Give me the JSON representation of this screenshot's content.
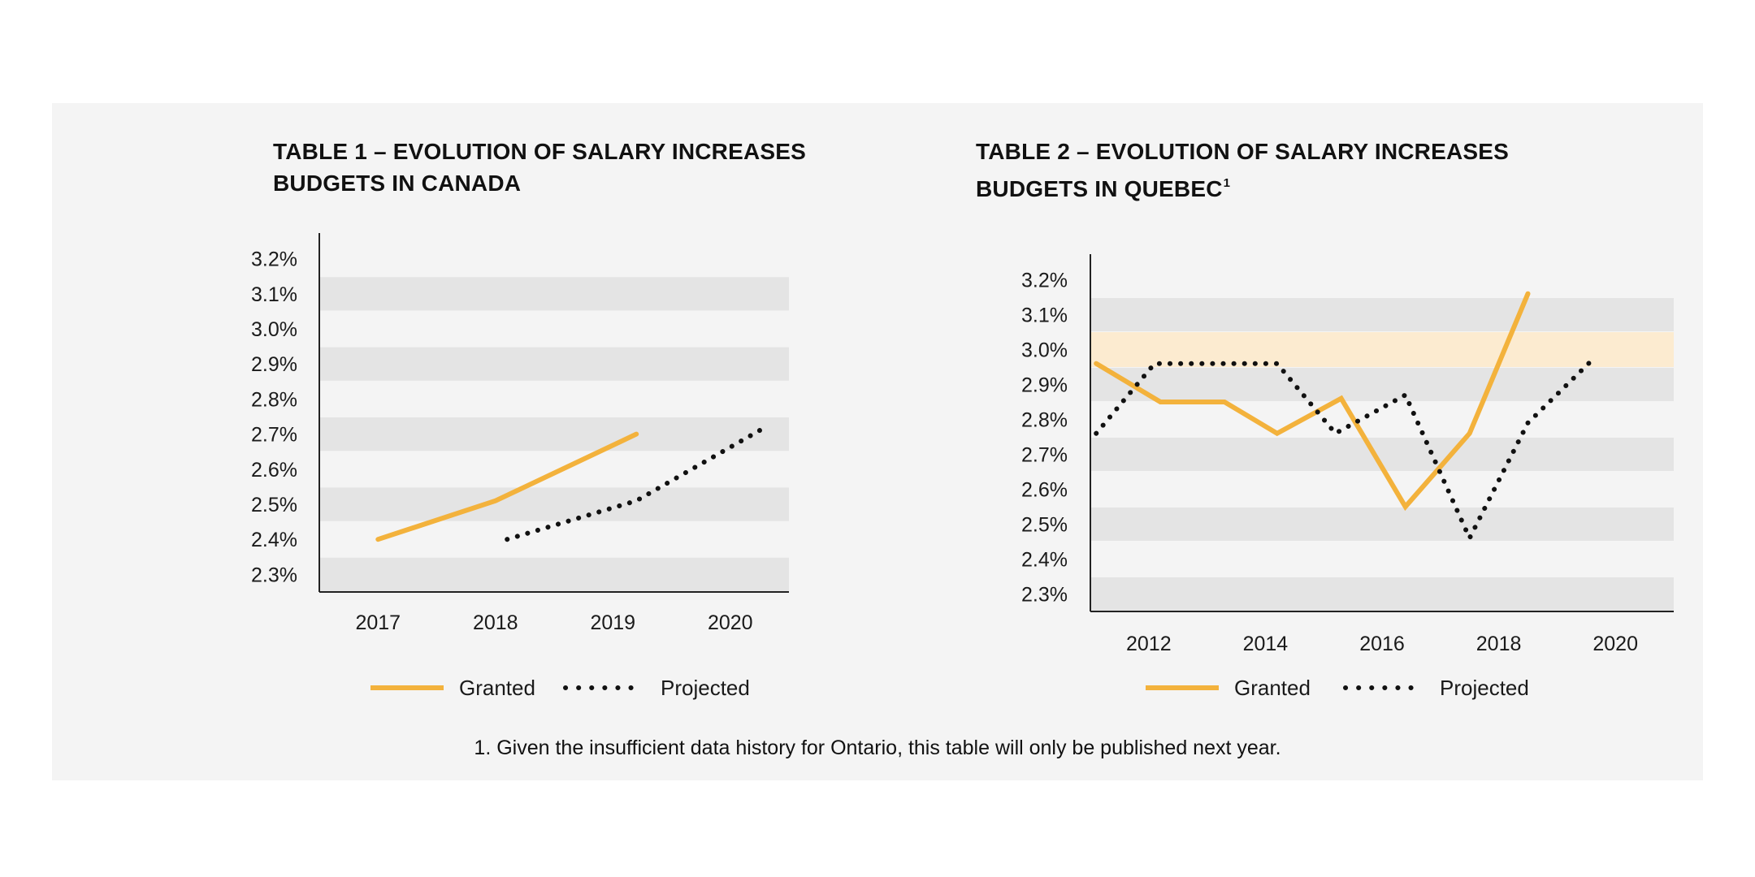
{
  "footnote": "1. Given the insufficient data history for Ontario, this table will only be published next year.",
  "colors": {
    "panel_bg": "#f4f4f4",
    "band": "#e4e4e4",
    "highlight_band": "#fcebd0",
    "granted": "#f3b23c",
    "projected": "#111111",
    "axis": "#222222"
  },
  "chart_data": [
    {
      "type": "line",
      "title_lead": "TABLE 1 –",
      "title": "EVOLUTION OF SALARY INCREASES BUDGETS IN CANADA",
      "title_line1": "EVOLUTION OF SALARY INCREASES",
      "title_line2": "BUDGETS IN CANADA",
      "title_sup": "",
      "xlabel": "",
      "ylabel": "",
      "x_ticks": [
        "2017",
        "2018",
        "2019",
        "2020"
      ],
      "y_ticks": [
        "3.2%",
        "3.1%",
        "3.0%",
        "2.9%",
        "2.8%",
        "2.7%",
        "2.6%",
        "2.5%",
        "2.4%",
        "2.3%"
      ],
      "ylim": [
        2.25,
        3.25
      ],
      "xlim": [
        2016.5,
        2020.5
      ],
      "highlight_band": null,
      "series": [
        {
          "name": "Granted",
          "style": "solid",
          "x": [
            2017,
            2018,
            2019.2
          ],
          "y": [
            2.4,
            2.51,
            2.7
          ]
        },
        {
          "name": "Projected",
          "style": "dotted",
          "x": [
            2018.1,
            2019.2,
            2020.3
          ],
          "y": [
            2.4,
            2.51,
            2.72
          ]
        }
      ],
      "legend": {
        "position": "bottom",
        "granted": "Granted",
        "projected": "Projected"
      }
    },
    {
      "type": "line",
      "title_lead": "TABLE 2 –",
      "title": "EVOLUTION OF SALARY INCREASES BUDGETS IN QUEBEC",
      "title_line1": "EVOLUTION OF SALARY INCREASES",
      "title_line2": "BUDGETS IN QUEBEC",
      "title_sup": "1",
      "xlabel": "",
      "ylabel": "",
      "x_ticks": [
        "2012",
        "2014",
        "2016",
        "2018",
        "2020"
      ],
      "y_ticks": [
        "3.2%",
        "3.1%",
        "3.0%",
        "2.9%",
        "2.8%",
        "2.7%",
        "2.6%",
        "2.5%",
        "2.4%",
        "2.3%"
      ],
      "ylim": [
        2.25,
        3.25
      ],
      "xlim": [
        2011,
        2021
      ],
      "highlight_band": [
        2.95,
        3.05
      ],
      "series": [
        {
          "name": "Granted",
          "style": "solid",
          "x": [
            2011.1,
            2012.2,
            2013.3,
            2014.2,
            2015.3,
            2016.4,
            2017.5,
            2018.5
          ],
          "y": [
            2.96,
            2.85,
            2.85,
            2.76,
            2.86,
            2.55,
            2.76,
            3.16
          ]
        },
        {
          "name": "Projected",
          "style": "dotted",
          "x": [
            2011.1,
            2012.1,
            2014.2,
            2015.2,
            2016.4,
            2017.5,
            2018.5,
            2019.6
          ],
          "y": [
            2.76,
            2.96,
            2.96,
            2.76,
            2.87,
            2.46,
            2.79,
            2.97
          ]
        }
      ],
      "legend": {
        "position": "bottom",
        "granted": "Granted",
        "projected": "Projected"
      }
    }
  ]
}
